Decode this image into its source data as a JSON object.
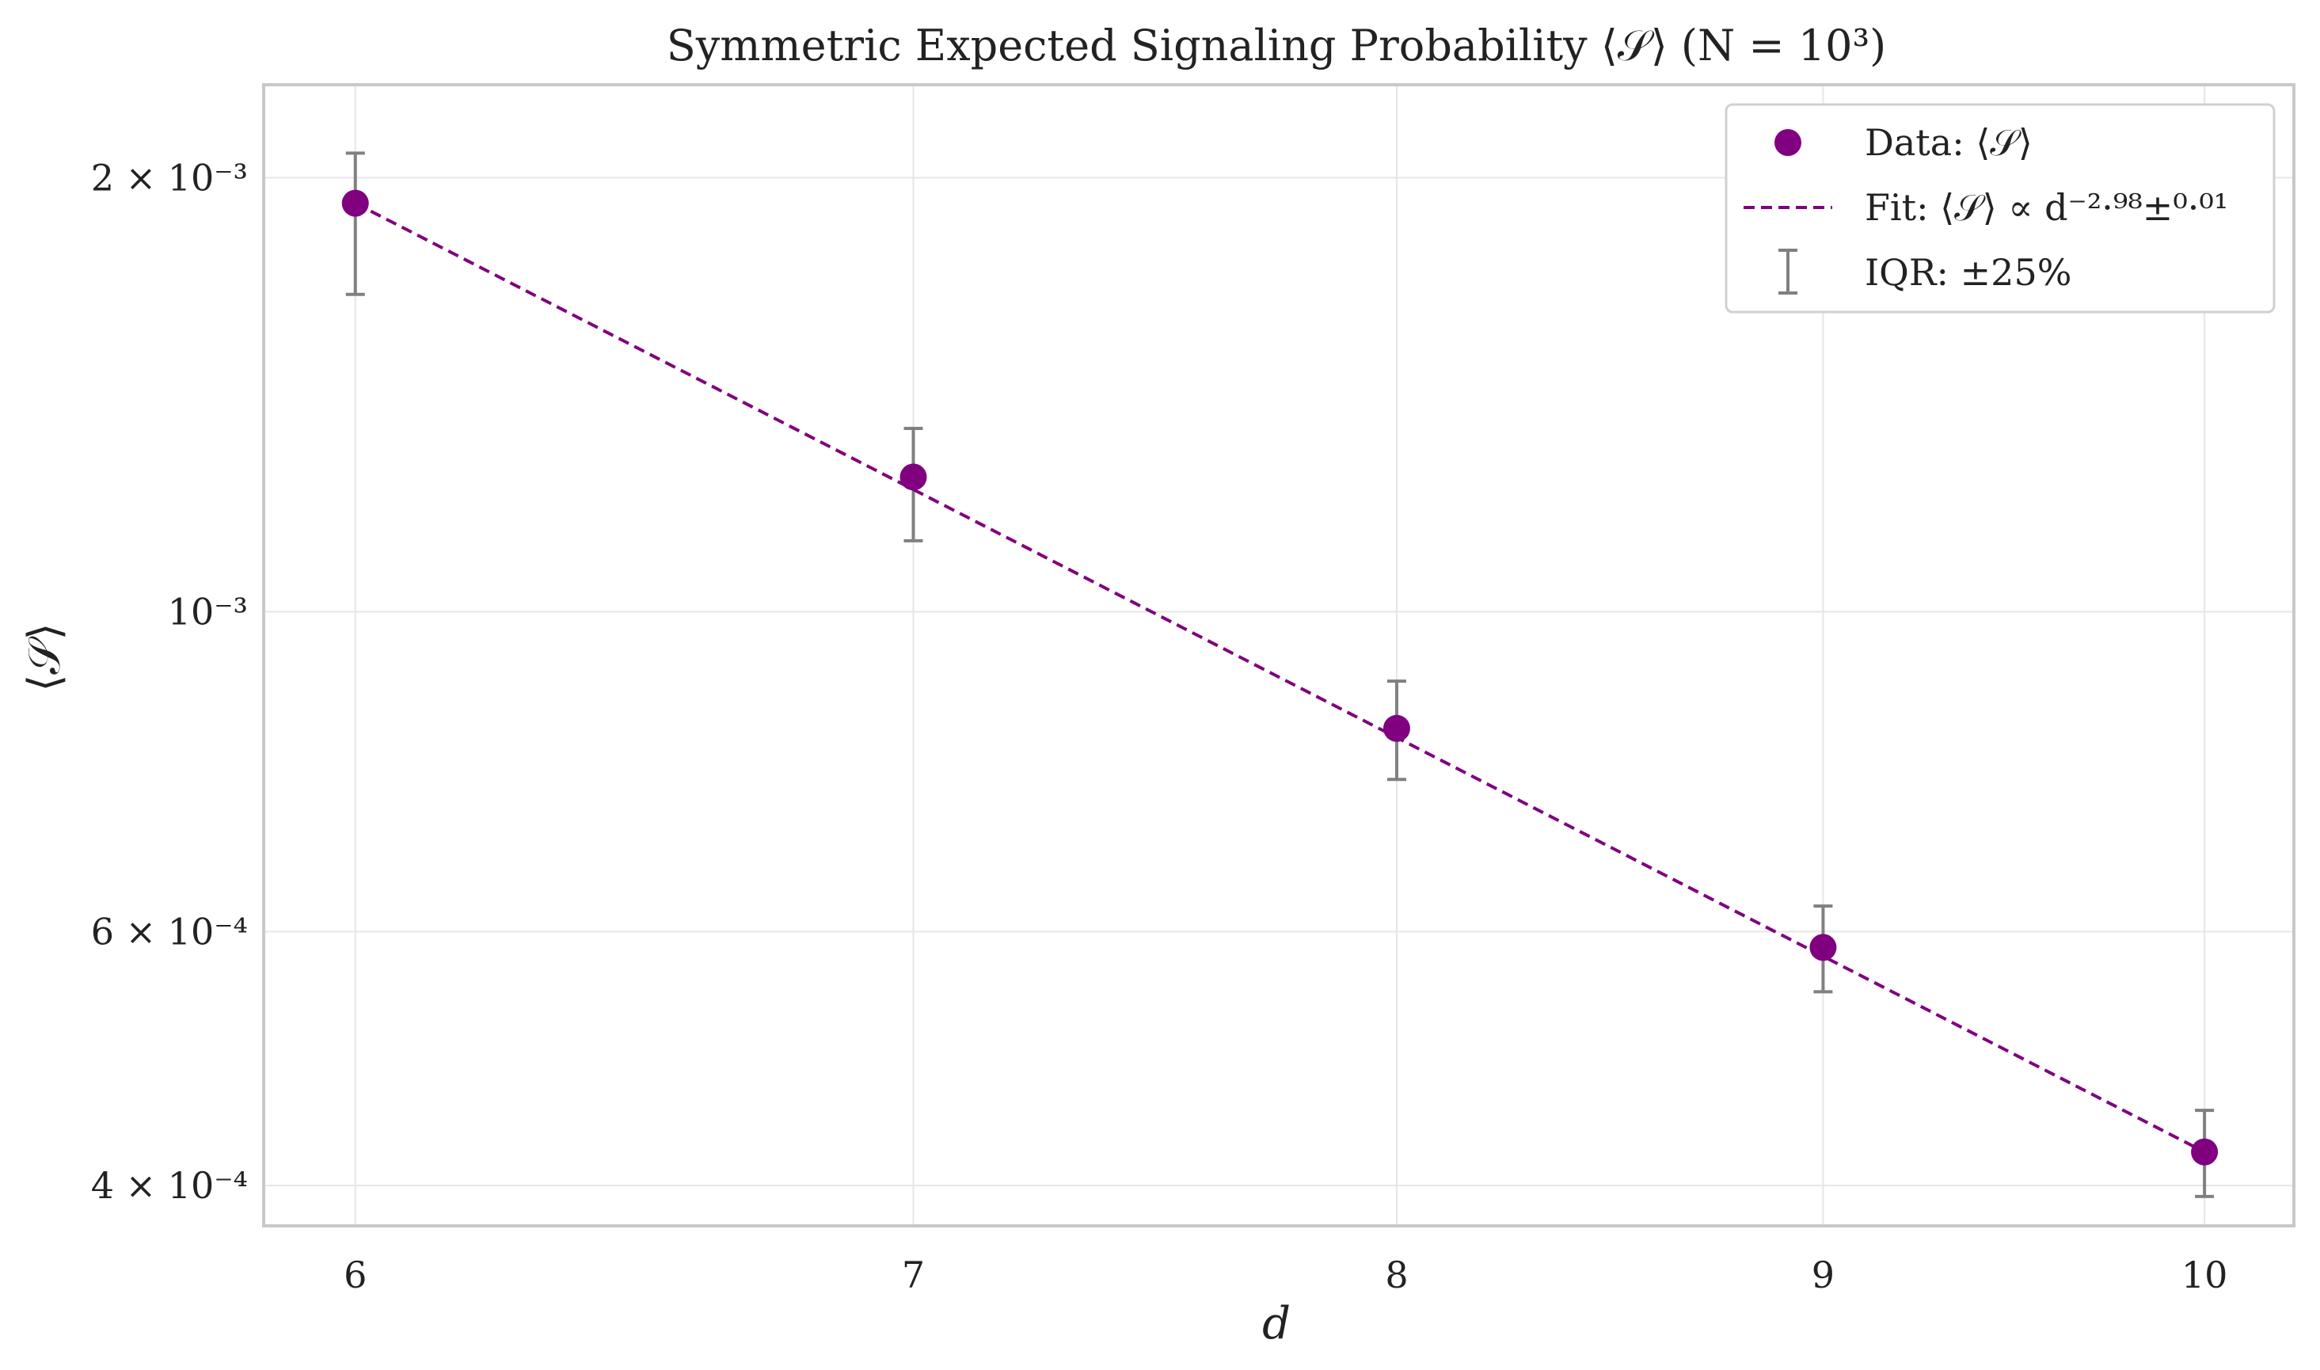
{
  "chart_data": {
    "type": "scatter",
    "title": "Symmetric Expected Signaling Probability ⟨𝒮⟩ (N = 10³)",
    "xlabel": "d",
    "ylabel": "⟨𝒮⟩",
    "x_scale": "log",
    "y_scale": "log",
    "xlim": [
      5.85,
      10.25
    ],
    "ylim": [
      0.000375,
      0.00232
    ],
    "grid": true,
    "legend_position": "top-right",
    "x_ticks": [
      {
        "value": 6,
        "label": "6"
      },
      {
        "value": 7,
        "label": "7"
      },
      {
        "value": 8,
        "label": "8"
      },
      {
        "value": 9,
        "label": "9"
      },
      {
        "value": 10,
        "label": "10"
      }
    ],
    "y_ticks": [
      {
        "value": 0.002,
        "label": "2 × 10⁻³"
      },
      {
        "value": 0.001,
        "label": "10⁻³"
      },
      {
        "value": 0.0006,
        "label": "6 × 10⁻⁴"
      },
      {
        "value": 0.0004,
        "label": "4 × 10⁻⁴"
      }
    ],
    "series": [
      {
        "name": "Data: ⟨𝒮⟩",
        "kind": "points",
        "color": "#800080",
        "x": [
          6,
          7,
          8,
          9,
          10
        ],
        "y": [
          0.00192,
          0.00124,
          0.00083,
          0.000585,
          0.000422
        ]
      },
      {
        "name": "Fit: ⟨𝒮⟩ ∝ d⁻²·⁹⁸±⁰·⁰¹",
        "kind": "fit-line",
        "color": "#800080",
        "style": "dashed",
        "x": [
          6,
          10
        ],
        "y": [
          0.00192,
          0.000422
        ]
      },
      {
        "name": "IQR: ±25%",
        "kind": "error-bars",
        "color": "#808080",
        "x": [
          6,
          7,
          8,
          9,
          10
        ],
        "y_low": [
          0.00166,
          0.00112,
          0.000765,
          0.000545,
          0.000393
        ],
        "y_high": [
          0.00208,
          0.00134,
          0.000895,
          0.000625,
          0.000451
        ]
      }
    ]
  }
}
